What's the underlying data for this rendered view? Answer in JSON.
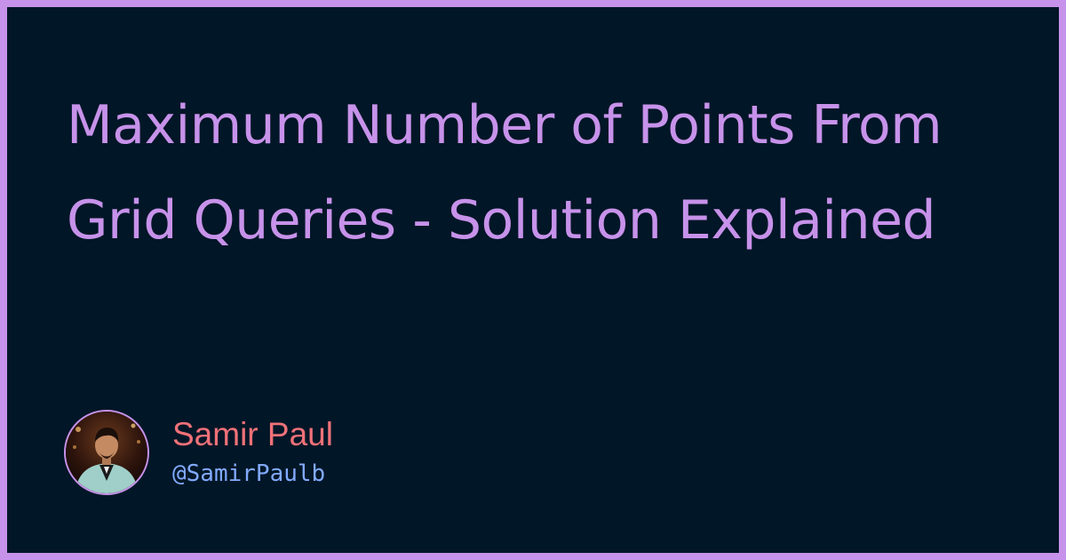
{
  "title": "Maximum Number of Points From Grid Queries - Solution Explained",
  "author": {
    "name": "Samir Paul",
    "handle": "@SamirPaulb",
    "avatar_icon": "profile-photo"
  },
  "colors": {
    "frame": "#c792ea",
    "background": "#011627",
    "title": "#c792ea",
    "author_name": "#f07178",
    "author_handle": "#82aaff"
  }
}
